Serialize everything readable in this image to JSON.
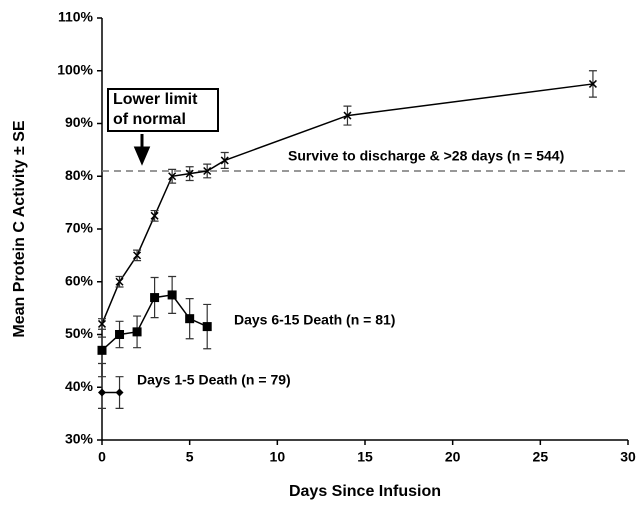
{
  "chart_data": {
    "type": "line",
    "x_label": "Days Since Infusion",
    "y_label": "Mean Protein C Activity ± SE",
    "xlim": [
      0,
      30
    ],
    "xticks": [
      0,
      5,
      10,
      15,
      20,
      25,
      30
    ],
    "ylim": [
      30,
      110
    ],
    "yticks": [
      {
        "value": 30,
        "label": "30%"
      },
      {
        "value": 40,
        "label": "40%"
      },
      {
        "value": 50,
        "label": "50%"
      },
      {
        "value": 60,
        "label": "60%"
      },
      {
        "value": 70,
        "label": "70%"
      },
      {
        "value": 80,
        "label": "80%"
      },
      {
        "value": 90,
        "label": "90%"
      },
      {
        "value": 100,
        "label": "100%"
      },
      {
        "value": 110,
        "label": "110%"
      }
    ],
    "reference_line": {
      "value": 81,
      "label_lines": [
        "Lower limit",
        "of normal"
      ]
    },
    "series": [
      {
        "name": "Survive to discharge & >28 days (n = 544)",
        "color": "#000000",
        "marker": "x",
        "x": [
          0,
          1,
          2,
          3,
          4,
          5,
          6,
          7,
          14,
          28
        ],
        "values": [
          52,
          60,
          65,
          72.5,
          80,
          80.5,
          81,
          83,
          91.5,
          97.5
        ],
        "errors": [
          1,
          1,
          1,
          1,
          1.3,
          1.3,
          1.3,
          1.5,
          1.8,
          2.5
        ]
      },
      {
        "name": "Days 6-15 Death (n = 81)",
        "color": "#000000",
        "marker": "square",
        "x": [
          0,
          1,
          2,
          3,
          4,
          5,
          6
        ],
        "values": [
          47,
          50,
          50.5,
          57,
          57.5,
          53,
          51.5
        ],
        "errors": [
          2.5,
          2.5,
          3,
          3.8,
          3.5,
          3.8,
          4.2
        ]
      },
      {
        "name": "Days 1-5 Death (n = 79)",
        "color": "#000000",
        "marker": "diamond",
        "x": [
          0,
          1
        ],
        "values": [
          39,
          39
        ],
        "errors": [
          3,
          3
        ]
      }
    ]
  }
}
